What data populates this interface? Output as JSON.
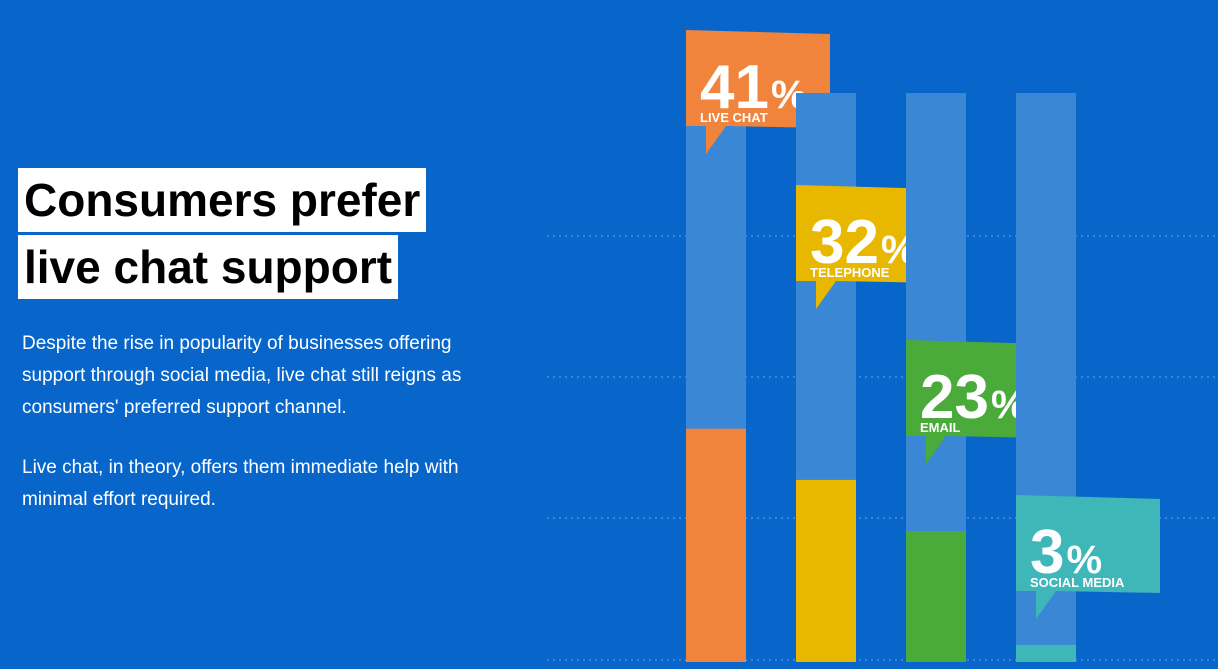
{
  "title_lines": [
    "Consumers prefer",
    "live chat support"
  ],
  "paragraphs": [
    "Despite the rise in popularity of businesses offering support through social media, live chat still reigns as consumers' preferred support channel.",
    "Live chat, in theory, offers them immediate help with minimal effort required."
  ],
  "chart_data": {
    "type": "bar",
    "categories": [
      "LIVE CHAT",
      "TELEPHONE",
      "EMAIL",
      "SOCIAL MEDIA"
    ],
    "values": [
      41,
      32,
      23,
      3
    ],
    "value_labels": [
      "41%",
      "32%",
      "23%",
      "3%"
    ],
    "colors": [
      "#f0843c",
      "#e8b800",
      "#4aaa3a",
      "#3fb6b8"
    ],
    "ylim": [
      0,
      100
    ]
  }
}
